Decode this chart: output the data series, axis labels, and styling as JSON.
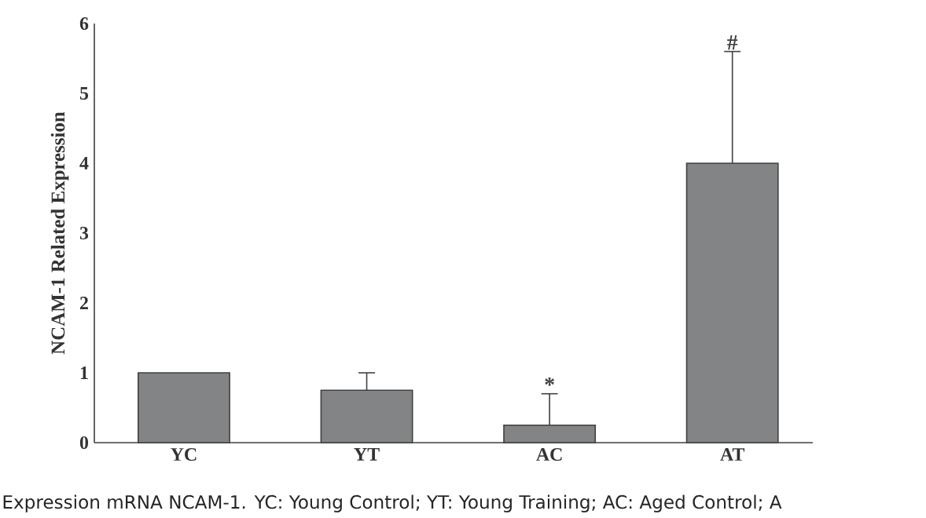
{
  "chart_data": {
    "type": "bar",
    "ylabel": "NCAM-1 Related  Expression",
    "categories": [
      "YC",
      "YT",
      "AC",
      "AT"
    ],
    "values": [
      1.0,
      0.75,
      0.25,
      4.0
    ],
    "errors": [
      null,
      [
        0.75,
        1.0
      ],
      [
        0.25,
        0.7
      ],
      [
        4.0,
        5.6
      ]
    ],
    "color": "#838486",
    "ylim": [
      0,
      6
    ],
    "yticks": [
      0,
      1,
      2,
      3,
      4,
      5,
      6
    ],
    "annotations": [
      "*",
      "#",
      "Expression mRNA NCAM-1. YC: Young Control; YT: Young Training; AC: Aged Control; A"
    ]
  }
}
